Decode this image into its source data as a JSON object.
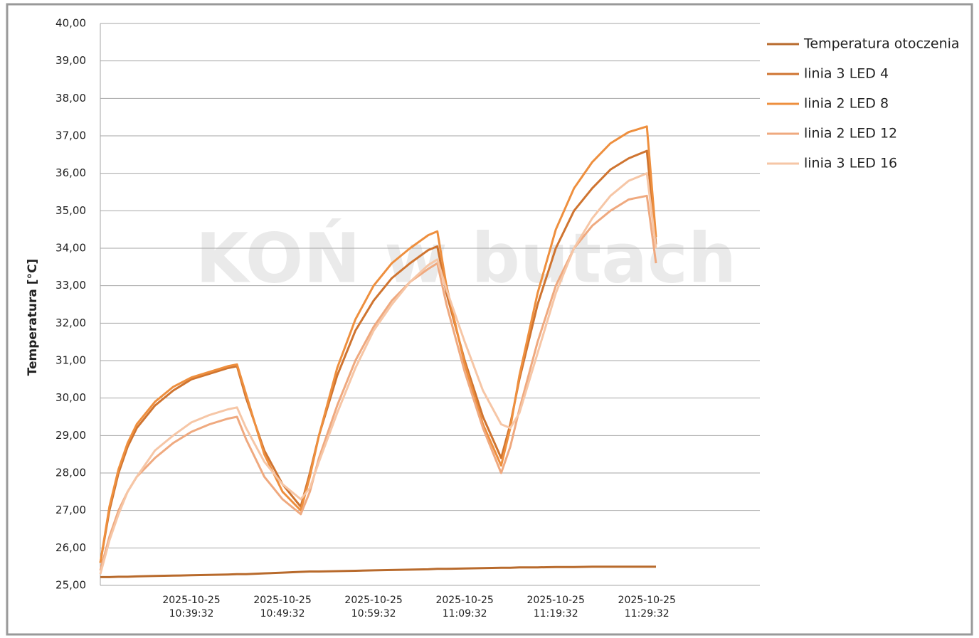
{
  "chart_data": {
    "type": "line",
    "y_label": "Temperatura [°C]",
    "watermark": "KOŃ w butach",
    "x": [
      "2025-10-25 10:29:32",
      "2025-10-25 10:30:32",
      "2025-10-25 10:31:32",
      "2025-10-25 10:32:32",
      "2025-10-25 10:33:32",
      "2025-10-25 10:35:32",
      "2025-10-25 10:37:32",
      "2025-10-25 10:39:32",
      "2025-10-25 10:41:32",
      "2025-10-25 10:43:32",
      "2025-10-25 10:44:32",
      "2025-10-25 10:45:32",
      "2025-10-25 10:47:32",
      "2025-10-25 10:49:32",
      "2025-10-25 10:51:32",
      "2025-10-25 10:52:32",
      "2025-10-25 10:53:32",
      "2025-10-25 10:55:32",
      "2025-10-25 10:57:32",
      "2025-10-25 10:59:32",
      "2025-10-25 11:01:32",
      "2025-10-25 11:03:32",
      "2025-10-25 11:05:32",
      "2025-10-25 11:06:32",
      "2025-10-25 11:07:32",
      "2025-10-25 11:09:32",
      "2025-10-25 11:11:32",
      "2025-10-25 11:13:32",
      "2025-10-25 11:14:32",
      "2025-10-25 11:15:32",
      "2025-10-25 11:17:32",
      "2025-10-25 11:19:32",
      "2025-10-25 11:21:32",
      "2025-10-25 11:23:32",
      "2025-10-25 11:25:32",
      "2025-10-25 11:27:32",
      "2025-10-25 11:29:32",
      "2025-10-25 11:30:32"
    ],
    "xlim": [
      "2025-10-25 10:29:32",
      "2025-10-25 11:41:56"
    ],
    "xticks": [
      "2025-10-25 10:39:32",
      "2025-10-25 10:49:32",
      "2025-10-25 10:59:32",
      "2025-10-25 11:09:32",
      "2025-10-25 11:19:32",
      "2025-10-25 11:29:32"
    ],
    "ylim": [
      25,
      40
    ],
    "yticks": [
      {
        "value": 25,
        "label": "25,00"
      },
      {
        "value": 26,
        "label": "26,00"
      },
      {
        "value": 27,
        "label": "27,00"
      },
      {
        "value": 28,
        "label": "28,00"
      },
      {
        "value": 29,
        "label": "29,00"
      },
      {
        "value": 30,
        "label": "30,00"
      },
      {
        "value": 31,
        "label": "31,00"
      },
      {
        "value": 32,
        "label": "32,00"
      },
      {
        "value": 33,
        "label": "33,00"
      },
      {
        "value": 34,
        "label": "34,00"
      },
      {
        "value": 35,
        "label": "35,00"
      },
      {
        "value": 36,
        "label": "36,00"
      },
      {
        "value": 37,
        "label": "37,00"
      },
      {
        "value": 38,
        "label": "38,00"
      },
      {
        "value": 39,
        "label": "39,00"
      },
      {
        "value": 40,
        "label": "40,00"
      }
    ],
    "grid": true,
    "legend": "right",
    "series": [
      {
        "name": "Temperatura otoczenia",
        "color": "#b86a2c",
        "values": [
          25.22,
          25.22,
          25.23,
          25.23,
          25.24,
          25.25,
          25.26,
          25.27,
          25.28,
          25.29,
          25.3,
          25.3,
          25.32,
          25.34,
          25.36,
          25.37,
          25.37,
          25.38,
          25.39,
          25.4,
          25.41,
          25.42,
          25.43,
          25.44,
          25.44,
          25.45,
          25.46,
          25.47,
          25.47,
          25.48,
          25.48,
          25.49,
          25.49,
          25.5,
          25.5,
          25.5,
          25.5,
          25.5
        ]
      },
      {
        "name": "linia 3 LED 4",
        "color": "#cf7430",
        "values": [
          25.6,
          27.0,
          28.0,
          28.7,
          29.2,
          29.8,
          30.2,
          30.5,
          30.65,
          30.8,
          30.85,
          30.0,
          28.6,
          27.7,
          27.1,
          28.0,
          29.0,
          30.6,
          31.8,
          32.6,
          33.2,
          33.6,
          33.95,
          34.05,
          32.8,
          31.0,
          29.5,
          28.4,
          29.3,
          30.5,
          32.5,
          34.0,
          35.0,
          35.6,
          36.1,
          36.4,
          36.6,
          34.1
        ]
      },
      {
        "name": "linia 2 LED 8",
        "color": "#ee8f3e",
        "values": [
          25.6,
          27.1,
          28.1,
          28.8,
          29.3,
          29.9,
          30.3,
          30.55,
          30.7,
          30.85,
          30.9,
          30.1,
          28.5,
          27.5,
          27.0,
          27.9,
          29.0,
          30.8,
          32.1,
          33.0,
          33.6,
          34.0,
          34.35,
          34.45,
          33.0,
          30.9,
          29.3,
          28.2,
          29.2,
          30.6,
          32.8,
          34.5,
          35.6,
          36.3,
          36.8,
          37.1,
          37.25,
          34.3
        ]
      },
      {
        "name": "linia 2 LED 12",
        "color": "#efa97f",
        "values": [
          25.4,
          26.3,
          27.0,
          27.5,
          27.9,
          28.4,
          28.8,
          29.1,
          29.3,
          29.45,
          29.5,
          28.9,
          27.9,
          27.3,
          26.9,
          27.5,
          28.4,
          29.8,
          31.0,
          31.9,
          32.6,
          33.1,
          33.45,
          33.6,
          32.5,
          30.7,
          29.2,
          28.0,
          28.7,
          29.7,
          31.5,
          33.0,
          34.0,
          34.6,
          35.0,
          35.3,
          35.4,
          33.6
        ]
      },
      {
        "name": "linia 3 LED 16",
        "color": "#f6c6a6",
        "values": [
          25.3,
          26.2,
          26.9,
          27.5,
          27.9,
          28.6,
          29.0,
          29.35,
          29.55,
          29.7,
          29.75,
          29.2,
          28.3,
          27.7,
          27.3,
          27.6,
          28.3,
          29.6,
          30.8,
          31.8,
          32.5,
          33.1,
          33.55,
          33.7,
          32.9,
          31.5,
          30.2,
          29.3,
          29.2,
          29.6,
          31.2,
          32.8,
          34.0,
          34.8,
          35.4,
          35.8,
          36.0,
          34.0
        ]
      }
    ]
  }
}
